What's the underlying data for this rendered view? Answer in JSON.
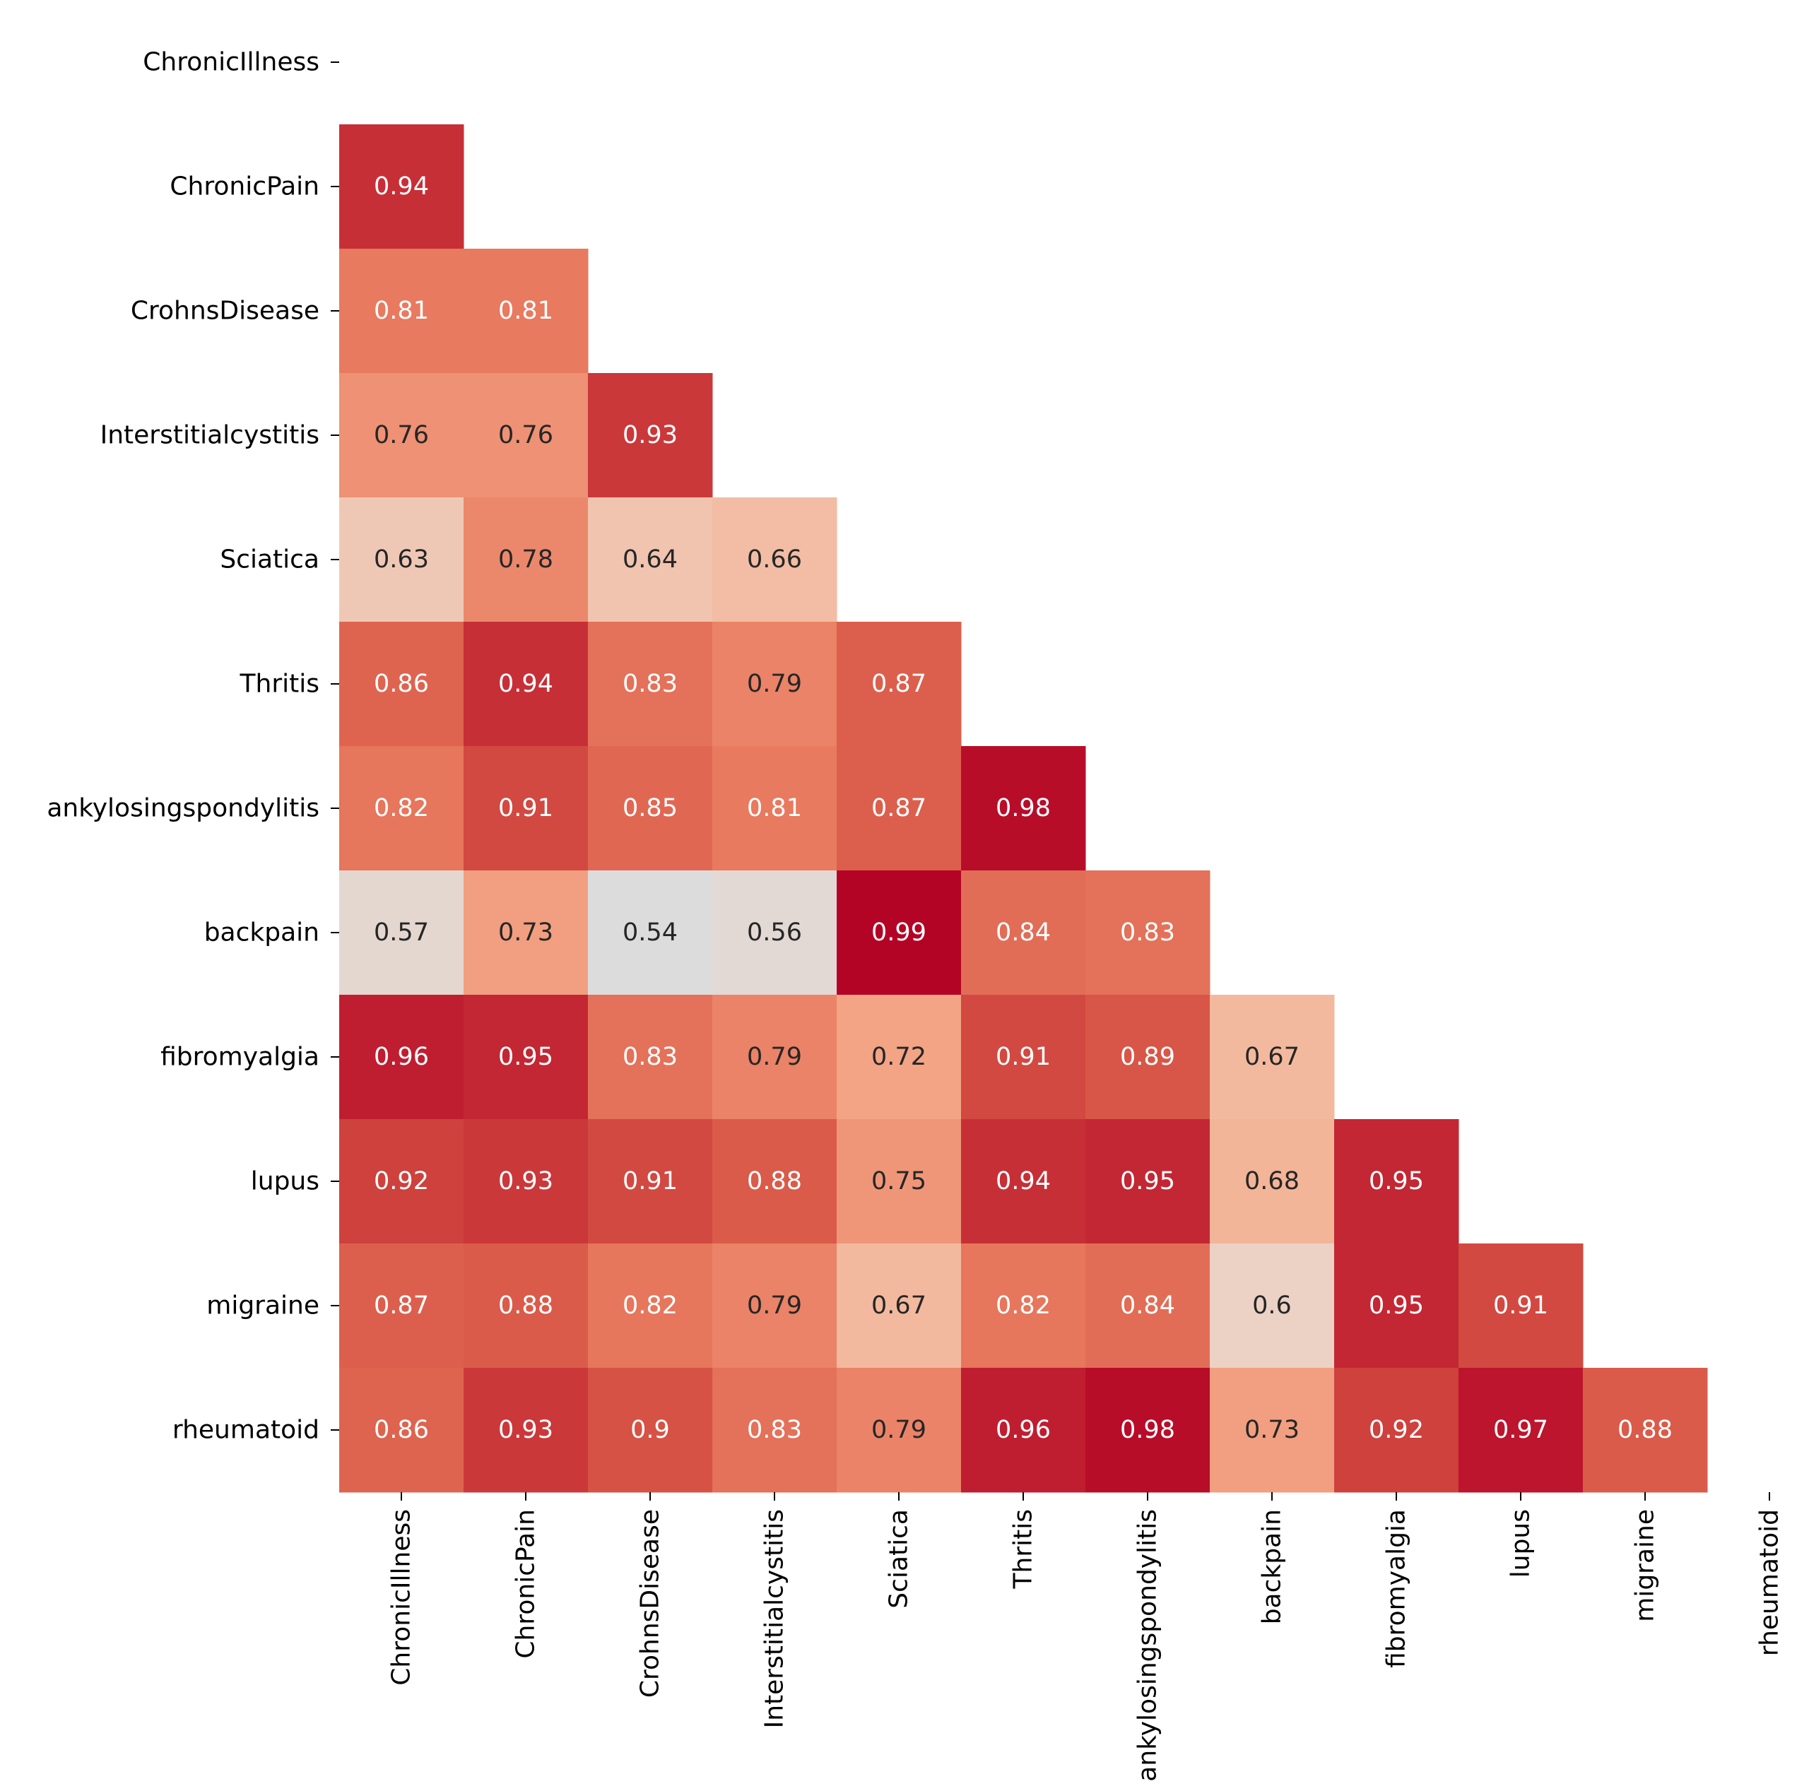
{
  "chart_data": {
    "type": "heatmap",
    "title": "",
    "xlabel": "",
    "ylabel": "",
    "labels": [
      "ChronicIllness",
      "ChronicPain",
      "CrohnsDisease",
      "Interstitialcystitis",
      "Sciatica",
      "Thritis",
      "ankylosingspondylitis",
      "backpain",
      "fibromyalgia",
      "lupus",
      "migraine",
      "rheumatoid"
    ],
    "mask": "upper-triangle-including-diagonal",
    "values": [
      [],
      [
        0.94
      ],
      [
        0.81,
        0.81
      ],
      [
        0.76,
        0.76,
        0.93
      ],
      [
        0.63,
        0.78,
        0.64,
        0.66
      ],
      [
        0.86,
        0.94,
        0.83,
        0.79,
        0.87
      ],
      [
        0.82,
        0.91,
        0.85,
        0.81,
        0.87,
        0.98
      ],
      [
        0.57,
        0.73,
        0.54,
        0.56,
        0.99,
        0.84,
        0.83
      ],
      [
        0.96,
        0.95,
        0.83,
        0.79,
        0.72,
        0.91,
        0.89,
        0.67
      ],
      [
        0.92,
        0.93,
        0.91,
        0.88,
        0.75,
        0.94,
        0.95,
        0.68,
        0.95
      ],
      [
        0.87,
        0.88,
        0.82,
        0.79,
        0.67,
        0.82,
        0.84,
        0.6,
        0.95,
        0.91
      ],
      [
        0.86,
        0.93,
        0.9,
        0.83,
        0.79,
        0.96,
        0.98,
        0.73,
        0.92,
        0.97,
        0.88
      ]
    ],
    "colormap": "coolwarm",
    "colors": {
      "low": "#dcdcdc",
      "high": "#b40426",
      "text_dark": "#262626",
      "text_light": "#ffffff"
    }
  }
}
